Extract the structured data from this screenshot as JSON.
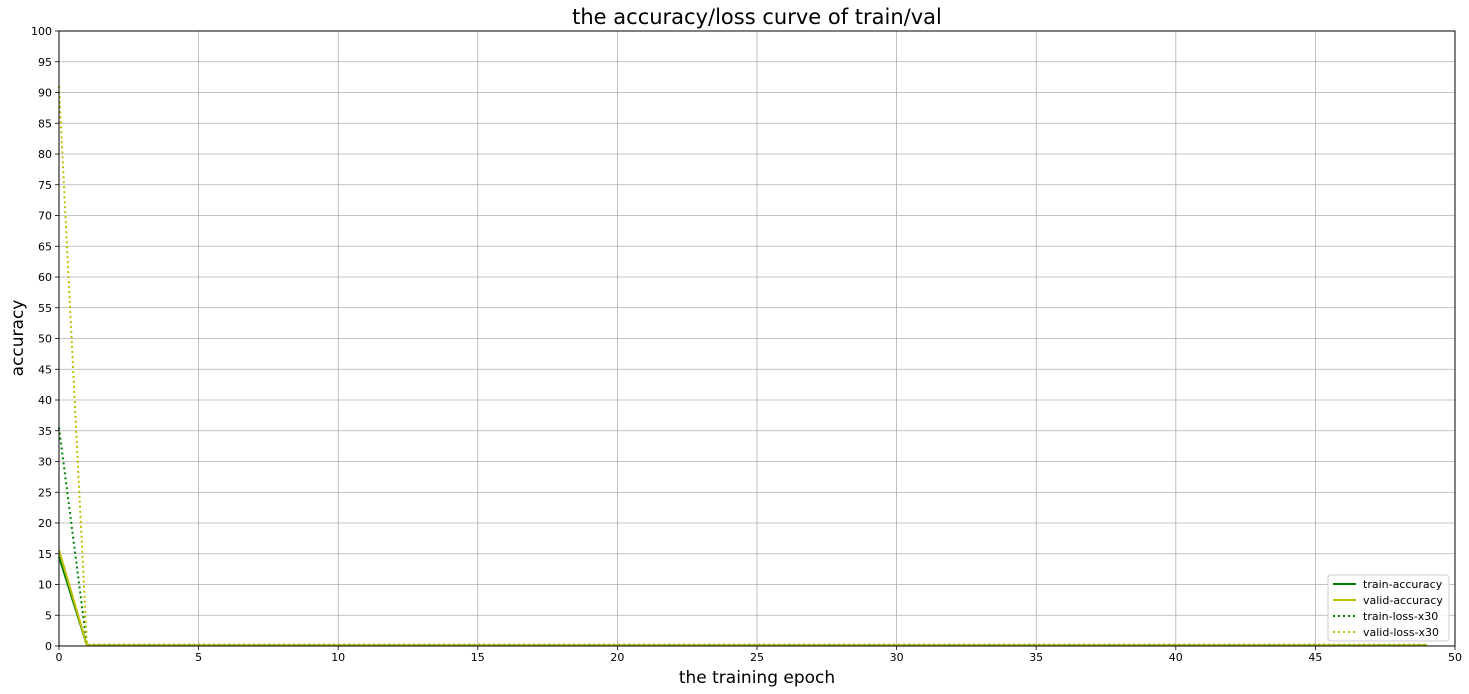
{
  "chart_data": {
    "type": "line",
    "title": "the accuracy/loss curve of train/val",
    "xlabel": "the training epoch",
    "ylabel": "accuracy",
    "xlim": [
      0,
      50
    ],
    "ylim": [
      0,
      100
    ],
    "xticks": [
      0,
      5,
      10,
      15,
      20,
      25,
      30,
      35,
      40,
      45,
      50
    ],
    "yticks": [
      0,
      5,
      10,
      15,
      20,
      25,
      30,
      35,
      40,
      45,
      50,
      55,
      60,
      65,
      70,
      75,
      80,
      85,
      90,
      95,
      100
    ],
    "grid": true,
    "legend_position": "lower-right",
    "x": [
      0,
      1,
      2,
      3,
      4,
      5,
      6,
      7,
      8,
      9,
      10,
      11,
      12,
      13,
      14,
      15,
      16,
      17,
      18,
      19,
      20,
      21,
      22,
      23,
      24,
      25,
      26,
      27,
      28,
      29,
      30,
      31,
      32,
      33,
      34,
      35,
      36,
      37,
      38,
      39,
      40,
      41,
      42,
      43,
      44,
      45,
      46,
      47,
      48,
      49
    ],
    "series": [
      {
        "name": "train-accuracy",
        "color": "#008000",
        "style": "solid",
        "values": [
          14.5,
          0.1,
          0.1,
          0.1,
          0.1,
          0.1,
          0.1,
          0.1,
          0.1,
          0.1,
          0.1,
          0.1,
          0.1,
          0.1,
          0.1,
          0.1,
          0.1,
          0.1,
          0.1,
          0.1,
          0.1,
          0.1,
          0.1,
          0.1,
          0.1,
          0.1,
          0.1,
          0.1,
          0.1,
          0.1,
          0.1,
          0.1,
          0.1,
          0.1,
          0.1,
          0.1,
          0.1,
          0.1,
          0.1,
          0.1,
          0.1,
          0.1,
          0.1,
          0.1,
          0.1,
          0.1,
          0.1,
          0.1,
          0.1,
          0.1
        ]
      },
      {
        "name": "valid-accuracy",
        "color": "#bfbf00",
        "style": "solid",
        "values": [
          15.6,
          0.1,
          0.1,
          0.1,
          0.1,
          0.1,
          0.1,
          0.1,
          0.1,
          0.1,
          0.1,
          0.1,
          0.1,
          0.1,
          0.1,
          0.1,
          0.1,
          0.1,
          0.1,
          0.1,
          0.1,
          0.1,
          0.1,
          0.1,
          0.1,
          0.1,
          0.1,
          0.1,
          0.1,
          0.1,
          0.1,
          0.1,
          0.1,
          0.1,
          0.1,
          0.1,
          0.1,
          0.1,
          0.1,
          0.1,
          0.1,
          0.1,
          0.1,
          0.1,
          0.1,
          0.1,
          0.1,
          0.1,
          0.1,
          0.1
        ]
      },
      {
        "name": "train-loss-x30",
        "color": "#008000",
        "style": "dotted",
        "values": [
          35.5,
          0.2,
          0.2,
          0.2,
          0.2,
          0.2,
          0.2,
          0.2,
          0.2,
          0.2,
          0.2,
          0.2,
          0.2,
          0.2,
          0.2,
          0.2,
          0.2,
          0.2,
          0.2,
          0.2,
          0.2,
          0.2,
          0.2,
          0.2,
          0.2,
          0.2,
          0.2,
          0.2,
          0.2,
          0.2,
          0.2,
          0.2,
          0.2,
          0.2,
          0.2,
          0.2,
          0.2,
          0.2,
          0.2,
          0.2,
          0.2,
          0.2,
          0.2,
          0.2,
          0.2,
          0.2,
          0.2,
          0.2,
          0.2,
          0.2
        ]
      },
      {
        "name": "valid-loss-x30",
        "color": "#bfbf00",
        "style": "dotted",
        "values": [
          91.0,
          0.2,
          0.2,
          0.2,
          0.2,
          0.2,
          0.2,
          0.2,
          0.2,
          0.2,
          0.2,
          0.2,
          0.2,
          0.2,
          0.2,
          0.2,
          0.2,
          0.2,
          0.2,
          0.2,
          0.2,
          0.2,
          0.2,
          0.2,
          0.2,
          0.2,
          0.2,
          0.2,
          0.2,
          0.2,
          0.2,
          0.2,
          0.2,
          0.2,
          0.2,
          0.2,
          0.2,
          0.2,
          0.2,
          0.2,
          0.2,
          0.2,
          0.2,
          0.2,
          0.2,
          0.2,
          0.2,
          0.2,
          0.2,
          0.2
        ]
      }
    ]
  }
}
